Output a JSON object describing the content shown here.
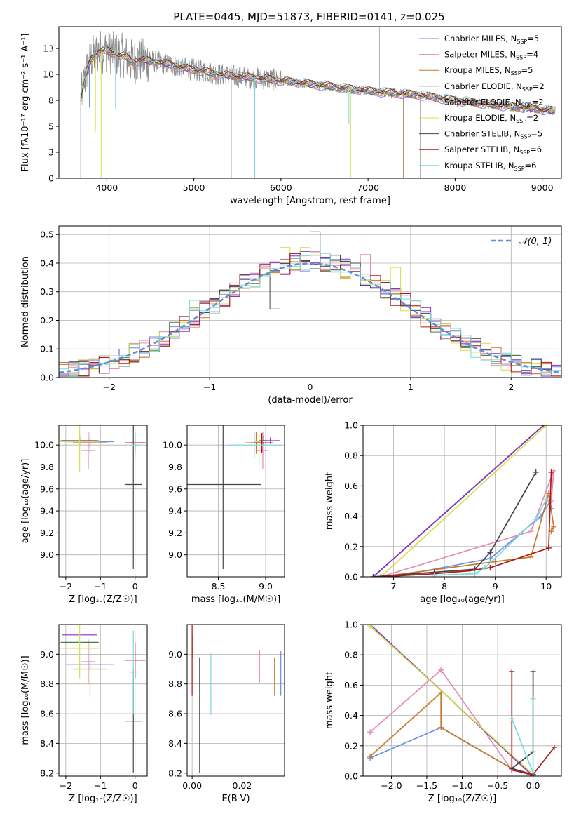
{
  "title": "PLATE=0445, MJD=51873, FIBERID=0141, z=0.025",
  "colors": {
    "Chabrier MILES": "#6a8fe0",
    "Salpeter MILES": "#e58bb8",
    "Kroupa MILES": "#c9782a",
    "Chabrier ELODIE": "#4b7d4b",
    "Salpeter ELODIE": "#8b2fc9",
    "Kroupa ELODIE": "#d4e04a",
    "Chabrier STELIB": "#454545",
    "Salpeter STELIB": "#b01818",
    "Kroupa STELIB": "#7dd8dc",
    "gauss": "#5b8fd9",
    "data": "#8c8c8c"
  },
  "chart_data": [
    {
      "id": "spectrum",
      "type": "line",
      "title": "PLATE=0445, MJD=51873, FIBERID=0141, z=0.025",
      "xlabel": "wavelength [Angstrom, rest frame]",
      "ylabel": "Flux [fλ10⁻¹⁷ erg cm⁻² s⁻¹ A⁻¹]",
      "xlim": [
        3450,
        9220
      ],
      "ylim": [
        0,
        14.6
      ],
      "xticks": [
        4000,
        5000,
        6000,
        7000,
        8000,
        9000
      ],
      "yticks": [
        0.0,
        2.5,
        5.0,
        7.5,
        10.0,
        12.5
      ],
      "grid": false,
      "legend_position": "top-right",
      "series": [
        {
          "name": "Chabrier MILES, N_SSP=5",
          "key": "Chabrier MILES"
        },
        {
          "name": "Salpeter MILES, N_SSP=4",
          "key": "Salpeter MILES"
        },
        {
          "name": "Kroupa MILES, N_SSP=5",
          "key": "Kroupa MILES"
        },
        {
          "name": "Chabrier ELODIE, N_SSP=2",
          "key": "Chabrier ELODIE"
        },
        {
          "name": "Salpeter ELODIE, N_SSP=2",
          "key": "Salpeter ELODIE"
        },
        {
          "name": "Kroupa ELODIE, N_SSP=2",
          "key": "Kroupa ELODIE"
        },
        {
          "name": "Chabrier STELIB, N_SSP=5",
          "key": "Chabrier STELIB"
        },
        {
          "name": "Salpeter STELIB, N_SSP=6",
          "key": "Salpeter STELIB"
        },
        {
          "name": "Kroupa STELIB, N_SSP=6",
          "key": "Kroupa STELIB"
        }
      ],
      "model_continuum": [
        [
          3700,
          7.5
        ],
        [
          3760,
          10.0
        ],
        [
          3820,
          11.5
        ],
        [
          3900,
          12.2
        ],
        [
          4000,
          12.3
        ],
        [
          4100,
          11.9
        ],
        [
          4200,
          11.8
        ],
        [
          4300,
          11.2
        ],
        [
          4400,
          11.4
        ],
        [
          4500,
          11.3
        ],
        [
          4700,
          11.0
        ],
        [
          4900,
          10.6
        ],
        [
          5100,
          10.3
        ],
        [
          5300,
          10.0
        ],
        [
          5500,
          9.8
        ],
        [
          5800,
          9.6
        ],
        [
          6100,
          9.3
        ],
        [
          6400,
          9.0
        ],
        [
          6700,
          8.7
        ],
        [
          7000,
          8.4
        ],
        [
          7300,
          8.2
        ],
        [
          7600,
          8.0
        ],
        [
          7900,
          7.6
        ],
        [
          8200,
          7.3
        ],
        [
          8500,
          7.0
        ],
        [
          8800,
          6.8
        ],
        [
          9000,
          6.6
        ],
        [
          9100,
          6.5
        ]
      ],
      "model_dips": [
        {
          "series": "Kroupa ELODIE",
          "x": 3935,
          "y": 0.0
        },
        {
          "series": "Kroupa ELODIE",
          "x": 6800,
          "y": 0.0
        },
        {
          "series": "Kroupa MILES",
          "x": 7410,
          "y": 0.0
        },
        {
          "series": "Kroupa STELIB",
          "x": 5700,
          "y": 0.0
        },
        {
          "series": "Kroupa STELIB",
          "x": 4100,
          "y": 6.6
        },
        {
          "series": "Chabrier MILES",
          "x": 3800,
          "y": 6.8
        },
        {
          "series": "Kroupa ELODIE",
          "x": 3870,
          "y": 4.5
        },
        {
          "series": "Kroupa STELIB",
          "x": 6780,
          "y": 5.2
        }
      ]
    },
    {
      "id": "residuals",
      "type": "histogram",
      "xlabel": "(data-model)/error",
      "ylabel": "Normed distribution",
      "xlim": [
        -2.5,
        2.5
      ],
      "ylim": [
        0,
        0.53
      ],
      "xticks": [
        -2,
        -1,
        0,
        1,
        2
      ],
      "yticks": [
        0.0,
        0.1,
        0.2,
        0.3,
        0.4,
        0.5
      ],
      "grid": true,
      "legend_position": "top-right",
      "gaussian": {
        "label": "𝒩(0, 1)",
        "mean": 0,
        "sigma": 1
      },
      "bins": {
        "start": -2.5,
        "width": 0.1,
        "count": 50
      },
      "outliers": [
        {
          "series": "Chabrier ELODIE",
          "bin": 25,
          "value": 0.51
        },
        {
          "series": "Kroupa ELODIE",
          "bin": 22,
          "value": 0.455
        },
        {
          "series": "Kroupa ELODIE",
          "bin": 24,
          "value": 0.455
        },
        {
          "series": "Salpeter MILES",
          "bin": 30,
          "value": 0.43
        },
        {
          "series": "Kroupa ELODIE",
          "bin": 33,
          "value": 0.385
        },
        {
          "series": "Kroupa STELIB",
          "bin": 13,
          "value": 0.27
        },
        {
          "series": "Chabrier STELIB",
          "bin": 21,
          "value": 0.24
        }
      ]
    },
    {
      "id": "z_age",
      "type": "errorbar",
      "xlabel": "Z [log₁₀(Z/Z☉)]",
      "ylabel": "age  [log₁₀(age/yr)]",
      "xlim": [
        -2.2,
        0.35
      ],
      "ylim": [
        8.8,
        10.18
      ],
      "xticks": [
        -2,
        -1,
        0
      ],
      "yticks": [
        9.0,
        9.2,
        9.4,
        9.6,
        9.8,
        10.0
      ],
      "grid": true,
      "points": [
        {
          "series": "Chabrier MILES",
          "x": -1.3,
          "xe": 0.7,
          "y": 10.03,
          "ye": 0.06
        },
        {
          "series": "Salpeter MILES",
          "x": -1.35,
          "xe": 0.2,
          "y": 9.95,
          "ye": 0.17
        },
        {
          "series": "Kroupa MILES",
          "x": -1.3,
          "xe": 0.5,
          "y": 10.02,
          "ye": 0.1
        },
        {
          "series": "Chabrier ELODIE",
          "x": -1.6,
          "xe": 0.55,
          "y": 10.04,
          "ye": 0.04
        },
        {
          "series": "Salpeter ELODIE",
          "x": -1.6,
          "xe": 0.5,
          "y": 10.04,
          "ye": 0.03
        },
        {
          "series": "Kroupa ELODIE",
          "x": -1.6,
          "xe": 0.55,
          "y": 10.03,
          "ye": 0.27
        },
        {
          "series": "Chabrier STELIB",
          "x": -0.05,
          "xe": 0.25,
          "y": 9.64,
          "ye": 0.77
        },
        {
          "series": "Salpeter STELIB",
          "x": 0.0,
          "xe": 0.3,
          "y": 10.02,
          "ye": 0.09
        },
        {
          "series": "Kroupa STELIB",
          "x": 0.0,
          "xe": 0.12,
          "y": 10.0,
          "ye": 0.12
        }
      ]
    },
    {
      "id": "mass_age",
      "type": "errorbar",
      "xlabel": "mass [log₁₀(M/M☉)]",
      "ylabel": "",
      "xlim": [
        8.17,
        9.2
      ],
      "ylim": [
        8.8,
        10.18
      ],
      "xticks": [
        8.5,
        9.0
      ],
      "yticks": [
        9.0,
        9.2,
        9.4,
        9.6,
        9.8,
        10.0
      ],
      "grid": true,
      "points": [
        {
          "series": "Chabrier MILES",
          "x": 8.93,
          "xe": 0.03,
          "y": 10.03,
          "ye": 0.06
        },
        {
          "series": "Salpeter MILES",
          "x": 8.97,
          "xe": 0.06,
          "y": 9.95,
          "ye": 0.17
        },
        {
          "series": "Kroupa MILES",
          "x": 8.9,
          "xe": 0.12,
          "y": 10.02,
          "ye": 0.1
        },
        {
          "series": "Chabrier ELODIE",
          "x": 8.98,
          "xe": 0.05,
          "y": 10.04,
          "ye": 0.04
        },
        {
          "series": "Salpeter ELODIE",
          "x": 9.05,
          "xe": 0.1,
          "y": 10.04,
          "ye": 0.03
        },
        {
          "series": "Kroupa ELODIE",
          "x": 8.93,
          "xe": 0.05,
          "y": 10.03,
          "ye": 0.27
        },
        {
          "series": "Chabrier STELIB",
          "x": 8.55,
          "xe": 0.4,
          "y": 9.64,
          "ye": 0.77
        },
        {
          "series": "Salpeter STELIB",
          "x": 8.96,
          "xe": 0.12,
          "y": 10.02,
          "ye": 0.09
        },
        {
          "series": "Kroupa STELIB",
          "x": 8.88,
          "xe": 0.28,
          "y": 10.0,
          "ye": 0.12
        }
      ]
    },
    {
      "id": "age_weight",
      "type": "line",
      "xlabel": "age  [log₁₀(age/yr)]",
      "ylabel": "mass weight",
      "xlim": [
        6.4,
        10.3
      ],
      "ylim": [
        0,
        1.0
      ],
      "xticks": [
        7,
        8,
        9,
        10
      ],
      "yticks": [
        0.0,
        0.2,
        0.4,
        0.6,
        0.8,
        1.0
      ],
      "grid": true,
      "series": [
        {
          "key": "Chabrier MILES",
          "points": [
            [
              7.0,
              0.0
            ],
            [
              8.9,
              0.12
            ],
            [
              9.9,
              0.4
            ],
            [
              10.08,
              0.5
            ],
            [
              10.1,
              0.45
            ]
          ]
        },
        {
          "key": "Salpeter MILES",
          "points": [
            [
              6.75,
              0.0
            ],
            [
              9.7,
              0.3
            ],
            [
              10.15,
              0.7
            ],
            [
              10.1,
              0.5
            ]
          ]
        },
        {
          "key": "Kroupa MILES",
          "points": [
            [
              6.75,
              0.0
            ],
            [
              9.0,
              0.1
            ],
            [
              9.7,
              0.13
            ],
            [
              10.05,
              0.55
            ],
            [
              10.15,
              0.33
            ],
            [
              10.1,
              0.3
            ]
          ]
        },
        {
          "key": "Chabrier ELODIE",
          "points": [
            [
              6.6,
              0.0
            ],
            [
              9.95,
              1.0
            ]
          ]
        },
        {
          "key": "Salpeter ELODIE",
          "points": [
            [
              6.6,
              0.0
            ],
            [
              9.95,
              1.0
            ]
          ]
        },
        {
          "key": "Kroupa ELODIE",
          "points": [
            [
              6.75,
              0.0
            ],
            [
              10.0,
              1.0
            ]
          ]
        },
        {
          "key": "Chabrier STELIB",
          "points": [
            [
              6.6,
              0.0
            ],
            [
              7.8,
              0.03
            ],
            [
              8.6,
              0.05
            ],
            [
              8.9,
              0.16
            ],
            [
              9.8,
              0.69
            ]
          ]
        },
        {
          "key": "Salpeter STELIB",
          "points": [
            [
              6.75,
              0.0
            ],
            [
              7.8,
              0.02
            ],
            [
              8.5,
              0.04
            ],
            [
              8.9,
              0.06
            ],
            [
              10.05,
              0.19
            ],
            [
              10.1,
              0.69
            ]
          ]
        },
        {
          "key": "Kroupa STELIB",
          "points": [
            [
              7.8,
              0.01
            ],
            [
              8.6,
              0.02
            ],
            [
              8.8,
              0.06
            ],
            [
              9.8,
              0.38
            ],
            [
              10.0,
              0.51
            ]
          ]
        }
      ]
    },
    {
      "id": "z_mass",
      "type": "errorbar",
      "xlabel": "Z [log₁₀(Z/Z☉)]",
      "ylabel": "mass [log₁₀(M/M☉)]",
      "xlim": [
        -2.2,
        0.35
      ],
      "ylim": [
        8.18,
        9.2
      ],
      "xticks": [
        -2,
        -1,
        0
      ],
      "yticks": [
        8.2,
        8.4,
        8.6,
        8.8,
        9.0
      ],
      "grid": true,
      "points": [
        {
          "series": "Chabrier MILES",
          "x": -1.3,
          "xe": 0.7,
          "y": 8.93,
          "ye": 0.03
        },
        {
          "series": "Salpeter MILES",
          "x": -1.35,
          "xe": 0.2,
          "y": 8.95,
          "ye": 0.15
        },
        {
          "series": "Kroupa MILES",
          "x": -1.3,
          "xe": 0.5,
          "y": 8.9,
          "ye": 0.19
        },
        {
          "series": "Chabrier ELODIE",
          "x": -1.6,
          "xe": 0.55,
          "y": 9.08,
          "ye": 0.0
        },
        {
          "series": "Salpeter ELODIE",
          "x": -1.6,
          "xe": 0.5,
          "y": 9.13,
          "ye": 0.0
        },
        {
          "series": "Kroupa ELODIE",
          "x": -1.6,
          "xe": 0.55,
          "y": 9.04,
          "ye": 0.2
        },
        {
          "series": "Chabrier STELIB",
          "x": -0.05,
          "xe": 0.25,
          "y": 8.55,
          "ye": 0.35
        },
        {
          "series": "Salpeter STELIB",
          "x": 0.0,
          "xe": 0.3,
          "y": 8.96,
          "ye": 0.12
        },
        {
          "series": "Kroupa STELIB",
          "x": -0.05,
          "xe": 0.12,
          "y": 8.88,
          "ye": 0.28
        }
      ]
    },
    {
      "id": "ebv_mass",
      "type": "errorbar",
      "xlabel": "E(B-V)",
      "ylabel": "",
      "xlim": [
        -0.002,
        0.037
      ],
      "ylim": [
        8.18,
        9.2
      ],
      "xticks": [
        0.0,
        0.02
      ],
      "yticks": [
        8.2,
        8.4,
        8.6,
        8.8,
        9.0
      ],
      "grid": true,
      "points": [
        {
          "series": "Chabrier MILES",
          "x": 0.0355,
          "xe": 0,
          "y": 8.87,
          "ye": 0.15
        },
        {
          "series": "Salpeter MILES",
          "x": 0.027,
          "xe": 0,
          "y": 8.92,
          "ye": 0.11
        },
        {
          "series": "Kroupa MILES",
          "x": 0.033,
          "xe": 0,
          "y": 8.85,
          "ye": 0.13
        },
        {
          "series": "Chabrier ELODIE",
          "x": 0.0,
          "xe": 0,
          "y": 9.02,
          "ye": 0.04
        },
        {
          "series": "Salpeter ELODIE",
          "x": 0.0,
          "xe": 0,
          "y": 9.07,
          "ye": 0.06
        },
        {
          "series": "Kroupa ELODIE",
          "x": 0.0,
          "xe": 0,
          "y": 9.03,
          "ye": 0.06
        },
        {
          "series": "Chabrier STELIB",
          "x": 0.003,
          "xe": 0,
          "y": 8.59,
          "ye": 0.39
        },
        {
          "series": "Salpeter STELIB",
          "x": 0.0,
          "xe": 0,
          "y": 8.96,
          "ye": 0.24
        },
        {
          "series": "Kroupa STELIB",
          "x": 0.0075,
          "xe": 0,
          "y": 8.8,
          "ye": 0.21
        }
      ]
    },
    {
      "id": "z_weight",
      "type": "line",
      "xlabel": "Z [log₁₀(Z/Z☉)]",
      "ylabel": "mass weight",
      "xlim": [
        -2.4,
        0.4
      ],
      "ylim": [
        0,
        1.0
      ],
      "xticks": [
        -2.0,
        -1.5,
        -1.0,
        -0.5,
        0.0
      ],
      "yticks": [
        0.0,
        0.2,
        0.4,
        0.6,
        0.8,
        1.0
      ],
      "grid": true,
      "series": [
        {
          "key": "Chabrier MILES",
          "points": [
            [
              -2.3,
              0.12
            ],
            [
              -1.3,
              0.32
            ],
            [
              -0.3,
              0.05
            ],
            [
              0.0,
              0.0
            ]
          ]
        },
        {
          "key": "Salpeter MILES",
          "points": [
            [
              -2.3,
              0.29
            ],
            [
              -1.3,
              0.7
            ],
            [
              -0.3,
              0.04
            ],
            [
              0.0,
              0.01
            ]
          ]
        },
        {
          "key": "Kroupa MILES",
          "points": [
            [
              -2.3,
              0.13
            ],
            [
              -1.3,
              0.55
            ],
            [
              -1.3,
              0.32
            ],
            [
              -0.3,
              0.05
            ],
            [
              0.0,
              0.0
            ]
          ]
        },
        {
          "key": "Chabrier ELODIE",
          "points": [
            [
              -2.3,
              1.0
            ],
            [
              0.0,
              0.0
            ]
          ]
        },
        {
          "key": "Salpeter ELODIE",
          "points": [
            [
              -2.3,
              1.0
            ],
            [
              0.0,
              0.0
            ]
          ]
        },
        {
          "key": "Kroupa ELODIE",
          "points": [
            [
              -2.3,
              0.99
            ],
            [
              0.0,
              0.01
            ]
          ]
        },
        {
          "key": "Chabrier STELIB",
          "points": [
            [
              0.0,
              0.69
            ],
            [
              0.0,
              0.16
            ],
            [
              -0.3,
              0.05
            ],
            [
              0.0,
              0.01
            ]
          ]
        },
        {
          "key": "Salpeter STELIB",
          "points": [
            [
              -0.3,
              0.69
            ],
            [
              -0.3,
              0.04
            ],
            [
              0.0,
              0.01
            ],
            [
              0.3,
              0.19
            ]
          ]
        },
        {
          "key": "Kroupa STELIB",
          "points": [
            [
              -0.3,
              0.38
            ],
            [
              0.0,
              0.02
            ],
            [
              0.0,
              0.51
            ]
          ]
        }
      ]
    }
  ]
}
